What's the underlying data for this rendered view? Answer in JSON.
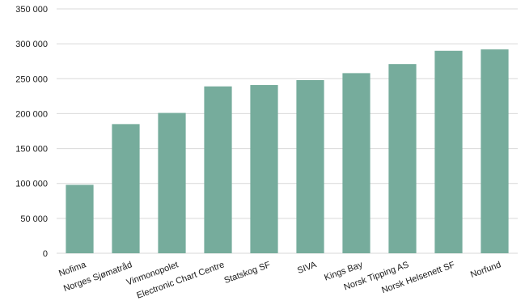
{
  "chart_data": {
    "type": "bar",
    "title": "",
    "xlabel": "",
    "ylabel": "",
    "categories": [
      "Nofima",
      "Norges Sjømatråd",
      "Vinmonopolet",
      "Electronic Chart Centre",
      "Statskog SF",
      "SIVA",
      "Kings Bay",
      "Norsk Tipping AS",
      "Norsk Helsenett SF",
      "Norfund"
    ],
    "values": [
      98000,
      185000,
      201000,
      239000,
      241000,
      248000,
      258000,
      271000,
      290000,
      292000
    ],
    "ylim": [
      0,
      350000
    ],
    "yticks": [
      0,
      50000,
      100000,
      150000,
      200000,
      250000,
      300000,
      350000
    ],
    "ytick_labels": [
      "0",
      "50 000",
      "100 000",
      "150 000",
      "200 000",
      "250 000",
      "300 000",
      "350 000"
    ],
    "grid": true,
    "legend": "none",
    "bar_color": "#76ac9c",
    "grid_color": "#d9d9d9"
  }
}
